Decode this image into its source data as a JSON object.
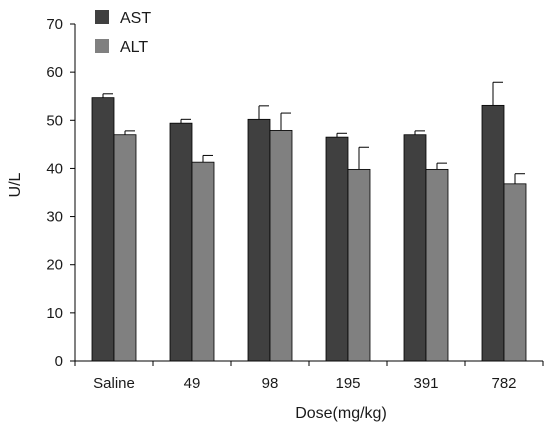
{
  "chart_data": {
    "type": "bar",
    "xlabel": "Dose(mg/kg)",
    "ylabel": "U/L",
    "ylim": [
      0,
      70
    ],
    "yticks": [
      0,
      10,
      20,
      30,
      40,
      50,
      60,
      70
    ],
    "categories": [
      "Saline",
      "49",
      "98",
      "195",
      "391",
      "782"
    ],
    "legend_position": "top-left",
    "grid": false,
    "series": [
      {
        "name": "AST",
        "color": "#404040",
        "values": [
          54.7,
          49.4,
          50.2,
          46.5,
          47.0,
          53.1
        ],
        "errors": [
          0.8,
          0.8,
          2.8,
          0.8,
          0.8,
          4.8
        ]
      },
      {
        "name": "ALT",
        "color": "#808080",
        "values": [
          47.0,
          41.3,
          47.9,
          39.8,
          39.8,
          36.8
        ],
        "errors": [
          0.8,
          1.4,
          3.6,
          4.6,
          1.3,
          2.1
        ]
      }
    ]
  }
}
